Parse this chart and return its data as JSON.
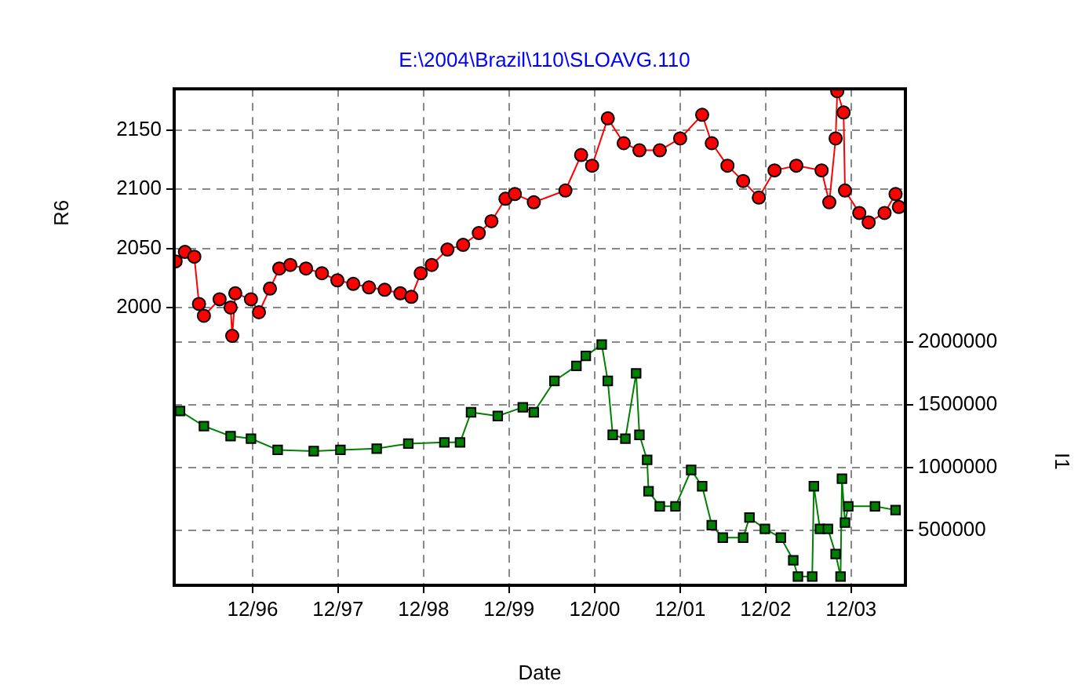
{
  "chart_data": {
    "type": "line",
    "title": "E:\\2004\\Brazil\\110\\SLOAVG.110",
    "xlabel": "Date",
    "ylabel": "R6",
    "y2label": "I1",
    "grid": true,
    "xlim": [
      "1996-01-01",
      "2004-07-20"
    ],
    "ylim": [
      1765,
      2185
    ],
    "yticks": [
      2000,
      2050,
      2100,
      2150
    ],
    "y2lim": [
      60000,
      4020000
    ],
    "y2ticks": [
      500000,
      1000000,
      1500000,
      2000000
    ],
    "xticks": [
      {
        "value": "1996-12-01",
        "label": "12/96"
      },
      {
        "value": "1997-12-01",
        "label": "12/97"
      },
      {
        "value": "1998-12-01",
        "label": "12/98"
      },
      {
        "value": "1999-12-01",
        "label": "12/99"
      },
      {
        "value": "2000-12-01",
        "label": "12/00"
      },
      {
        "value": "2001-12-01",
        "label": "12/01"
      },
      {
        "value": "2002-12-01",
        "label": "12/02"
      },
      {
        "value": "2003-12-01",
        "label": "12/03"
      }
    ],
    "series": [
      {
        "color": "#ff0000",
        "marker": "circle",
        "axis": "y",
        "x": [
          "1996-01-07",
          "1996-02-16",
          "1996-03-27",
          "1996-04-16",
          "1996-05-07",
          "1996-07-13",
          "1996-08-29",
          "1996-09-05",
          "1996-09-18",
          "1996-11-24",
          "1996-12-28",
          "1997-02-13",
          "1997-03-25",
          "1997-05-11",
          "1997-07-17",
          "1997-09-23",
          "1997-11-28",
          "1998-02-04",
          "1998-04-12",
          "1998-06-18",
          "1998-08-24",
          "1998-10-10",
          "1998-11-19",
          "1999-01-05",
          "1999-03-13",
          "1999-05-19",
          "1999-07-25",
          "1999-09-17",
          "1999-11-16",
          "1999-12-26",
          "2000-03-16",
          "2000-07-29",
          "2000-10-04",
          "2000-11-20",
          "2001-01-26",
          "2001-04-04",
          "2001-06-10",
          "2001-09-05",
          "2001-12-01",
          "2002-03-05",
          "2002-04-15",
          "2002-06-21",
          "2002-08-27",
          "2002-11-02",
          "2003-01-08",
          "2003-04-11",
          "2003-07-28",
          "2003-08-30",
          "2003-09-26",
          "2003-10-03",
          "2003-10-30",
          "2003-11-05",
          "2004-01-05",
          "2004-02-14",
          "2004-04-22",
          "2004-06-08",
          "2004-06-22"
        ],
        "values": [
          2039,
          2047,
          2043,
          2003,
          1993,
          2007,
          2000,
          1976,
          2012,
          2007,
          1996,
          2016,
          2033,
          2036,
          2033,
          2029,
          2023,
          2020,
          2017,
          2015,
          2012,
          2009,
          2029,
          2036,
          2049,
          2053,
          2063,
          2073,
          2092,
          2096,
          2089,
          2099,
          2129,
          2120,
          2160,
          2139,
          2133,
          2133,
          2143,
          2163,
          2139,
          2120,
          2107,
          2093,
          2116,
          2120,
          2116,
          2089,
          2143,
          2183,
          2165,
          2099,
          2080,
          2072,
          2080,
          2096,
          2085
        ]
      },
      {
        "color": "#008000",
        "marker": "square",
        "axis": "y2",
        "x": [
          "1996-01-26",
          "1996-05-07",
          "1996-08-29",
          "1996-11-24",
          "1997-03-18",
          "1997-08-19",
          "1997-12-11",
          "1998-05-15",
          "1998-09-27",
          "1999-02-28",
          "1999-05-06",
          "1999-06-22",
          "1999-10-14",
          "2000-01-29",
          "2000-03-16",
          "2000-06-12",
          "2000-09-14",
          "2000-10-24",
          "2000-12-31",
          "2001-01-26",
          "2001-02-16",
          "2001-04-11",
          "2001-05-27",
          "2001-06-10",
          "2001-07-13",
          "2001-07-19",
          "2001-09-05",
          "2001-11-11",
          "2002-01-17",
          "2002-03-05",
          "2002-04-15",
          "2002-06-01",
          "2002-08-27",
          "2002-09-23",
          "2002-11-28",
          "2003-02-04",
          "2003-03-29",
          "2003-04-18",
          "2003-06-18",
          "2003-06-25",
          "2003-07-21",
          "2003-08-24",
          "2003-09-26",
          "2003-10-17",
          "2003-10-23",
          "2003-11-05",
          "2003-11-19",
          "2004-03-12",
          "2004-06-08"
        ],
        "values": [
          1450000,
          1330000,
          1250000,
          1230000,
          1140000,
          1130000,
          1140000,
          1150000,
          1190000,
          1200000,
          1200000,
          1440000,
          1410000,
          1480000,
          1440000,
          1690000,
          1810000,
          1890000,
          1980000,
          1690000,
          1260000,
          1230000,
          1750000,
          1260000,
          1060000,
          810000,
          690000,
          690000,
          980000,
          850000,
          540000,
          440000,
          440000,
          600000,
          510000,
          440000,
          260000,
          130000,
          130000,
          850000,
          510000,
          510000,
          310000,
          130000,
          910000,
          560000,
          690000,
          690000,
          660000
        ]
      }
    ]
  }
}
